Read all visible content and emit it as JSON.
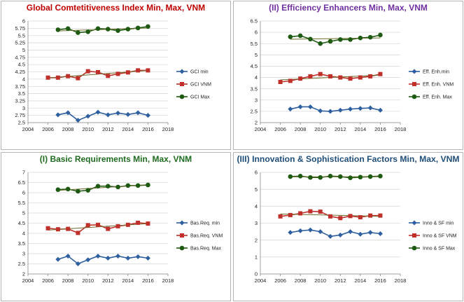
{
  "colors": {
    "min": "#2e5f9e",
    "vnm": "#c0302b",
    "max": "#1e5a12",
    "trend": "#6b6b2a",
    "border": "#b5b5b5"
  },
  "chart_data": [
    {
      "type": "line",
      "title": "Global Comtetitiveness Index Min, Max, VNM",
      "title_color": "#c00000",
      "x": [
        2007,
        2008,
        2009,
        2010,
        2011,
        2012,
        2013,
        2014,
        2015,
        2016
      ],
      "xlim": [
        2004,
        2018
      ],
      "xticks": [
        "2004",
        "2006",
        "2008",
        "2010",
        "2012",
        "2014",
        "2016",
        "2018"
      ],
      "ylim": [
        2.5,
        6
      ],
      "yticks": [
        "2.5",
        "2.75",
        "3",
        "3.25",
        "3.5",
        "3.75",
        "4",
        "4.25",
        "4.5",
        "4.75",
        "5",
        "5.25",
        "5.5",
        "5.75",
        "6"
      ],
      "series": [
        {
          "name": "GCI min",
          "x": [
            2007,
            2008,
            2009,
            2010,
            2011,
            2012,
            2013,
            2014,
            2015,
            2016
          ],
          "values": [
            2.77,
            2.84,
            2.58,
            2.72,
            2.86,
            2.77,
            2.83,
            2.78,
            2.84,
            2.75
          ]
        },
        {
          "name": "GCI VNM",
          "x": [
            2006,
            2007,
            2008,
            2009,
            2010,
            2011,
            2012,
            2013,
            2014,
            2015,
            2016
          ],
          "values": [
            4.05,
            4.05,
            4.1,
            4.03,
            4.27,
            4.24,
            4.11,
            4.18,
            4.23,
            4.3,
            4.3
          ]
        },
        {
          "name": "GCI Max",
          "x": [
            2007,
            2008,
            2009,
            2010,
            2011,
            2012,
            2013,
            2014,
            2015,
            2016
          ],
          "values": [
            5.7,
            5.74,
            5.6,
            5.63,
            5.74,
            5.72,
            5.67,
            5.72,
            5.76,
            5.81
          ]
        }
      ]
    },
    {
      "type": "line",
      "title": "(II) Efficiency Enhancers Min, Max, VNM",
      "title_color": "#7030a0",
      "x": [
        2007,
        2008,
        2009,
        2010,
        2011,
        2012,
        2013,
        2014,
        2015,
        2016
      ],
      "xlim": [
        2004,
        2018
      ],
      "xticks": [
        "2004",
        "2006",
        "2008",
        "2010",
        "2012",
        "2014",
        "2016",
        "2018"
      ],
      "ylim": [
        2,
        6.5
      ],
      "yticks": [
        "2",
        "2.5",
        "3",
        "3.5",
        "4",
        "4.5",
        "5",
        "5.5",
        "6",
        "6.5"
      ],
      "series": [
        {
          "name": "Eff. Enh.min",
          "x": [
            2007,
            2008,
            2009,
            2010,
            2011,
            2012,
            2013,
            2014,
            2015,
            2016
          ],
          "values": [
            2.6,
            2.7,
            2.7,
            2.52,
            2.5,
            2.55,
            2.6,
            2.63,
            2.65,
            2.55
          ]
        },
        {
          "name": "Eff. Enh. VNM",
          "x": [
            2006,
            2007,
            2008,
            2009,
            2010,
            2011,
            2012,
            2013,
            2014,
            2015,
            2016
          ],
          "values": [
            3.8,
            3.85,
            3.95,
            4.05,
            4.15,
            4.05,
            4.0,
            3.95,
            4.0,
            4.05,
            4.15
          ]
        },
        {
          "name": "Eff. Enh. Max",
          "x": [
            2007,
            2008,
            2009,
            2010,
            2011,
            2012,
            2013,
            2014,
            2015,
            2016
          ],
          "values": [
            5.8,
            5.85,
            5.7,
            5.5,
            5.6,
            5.68,
            5.68,
            5.75,
            5.78,
            5.88
          ]
        }
      ]
    },
    {
      "type": "line",
      "title": "(I) Basic Requirements Min, Max, VNM",
      "title_color": "#1f6b1f",
      "x": [
        2007,
        2008,
        2009,
        2010,
        2011,
        2012,
        2013,
        2014,
        2015,
        2016
      ],
      "xlim": [
        2004,
        2018
      ],
      "xticks": [
        "2004",
        "2006",
        "2008",
        "2010",
        "2012",
        "2014",
        "2016",
        "2018"
      ],
      "ylim": [
        2,
        7
      ],
      "yticks": [
        "2",
        "2.5",
        "3",
        "3.5",
        "4",
        "4.5",
        "5",
        "5.5",
        "6",
        "6.5",
        "7"
      ],
      "series": [
        {
          "name": "Bas.Req. min",
          "x": [
            2007,
            2008,
            2009,
            2010,
            2011,
            2012,
            2013,
            2014,
            2015,
            2016
          ],
          "values": [
            2.72,
            2.88,
            2.5,
            2.7,
            2.88,
            2.78,
            2.88,
            2.78,
            2.85,
            2.78
          ]
        },
        {
          "name": "Bas.Req. VNM",
          "x": [
            2006,
            2007,
            2008,
            2009,
            2010,
            2011,
            2012,
            2013,
            2014,
            2015,
            2016
          ],
          "values": [
            4.25,
            4.2,
            4.22,
            4.02,
            4.4,
            4.42,
            4.22,
            4.35,
            4.42,
            4.52,
            4.48
          ]
        },
        {
          "name": "Bas.Req. Max",
          "x": [
            2007,
            2008,
            2009,
            2010,
            2011,
            2012,
            2013,
            2014,
            2015,
            2016
          ],
          "values": [
            6.15,
            6.18,
            6.07,
            6.12,
            6.32,
            6.32,
            6.28,
            6.35,
            6.35,
            6.38
          ]
        }
      ]
    },
    {
      "type": "line",
      "title": "(III) Innovation & Sophistication Factors Min, Max, VNM",
      "title_color": "#1f4e79",
      "x": [
        2007,
        2008,
        2009,
        2010,
        2011,
        2012,
        2013,
        2014,
        2015,
        2016
      ],
      "xlim": [
        2004,
        2018
      ],
      "xticks": [
        "2004",
        "2006",
        "2008",
        "2010",
        "2012",
        "2014",
        "2016",
        "2018"
      ],
      "ylim": [
        0,
        6
      ],
      "yticks": [
        "0",
        "1",
        "2",
        "3",
        "4",
        "5",
        "6"
      ],
      "series": [
        {
          "name": "Inno & SF min",
          "x": [
            2007,
            2008,
            2009,
            2010,
            2011,
            2012,
            2013,
            2014,
            2015,
            2016
          ],
          "values": [
            2.45,
            2.55,
            2.6,
            2.5,
            2.22,
            2.3,
            2.5,
            2.35,
            2.45,
            2.38
          ]
        },
        {
          "name": "Inno & SF VNM",
          "x": [
            2006,
            2007,
            2008,
            2009,
            2010,
            2011,
            2012,
            2013,
            2014,
            2015,
            2016
          ],
          "values": [
            3.4,
            3.48,
            3.58,
            3.7,
            3.68,
            3.4,
            3.3,
            3.42,
            3.35,
            3.45,
            3.45
          ]
        },
        {
          "name": "Inno & SF Max",
          "x": [
            2007,
            2008,
            2009,
            2010,
            2011,
            2012,
            2013,
            2014,
            2015,
            2016
          ],
          "values": [
            5.75,
            5.78,
            5.7,
            5.7,
            5.78,
            5.75,
            5.68,
            5.72,
            5.75,
            5.78
          ]
        }
      ]
    }
  ]
}
